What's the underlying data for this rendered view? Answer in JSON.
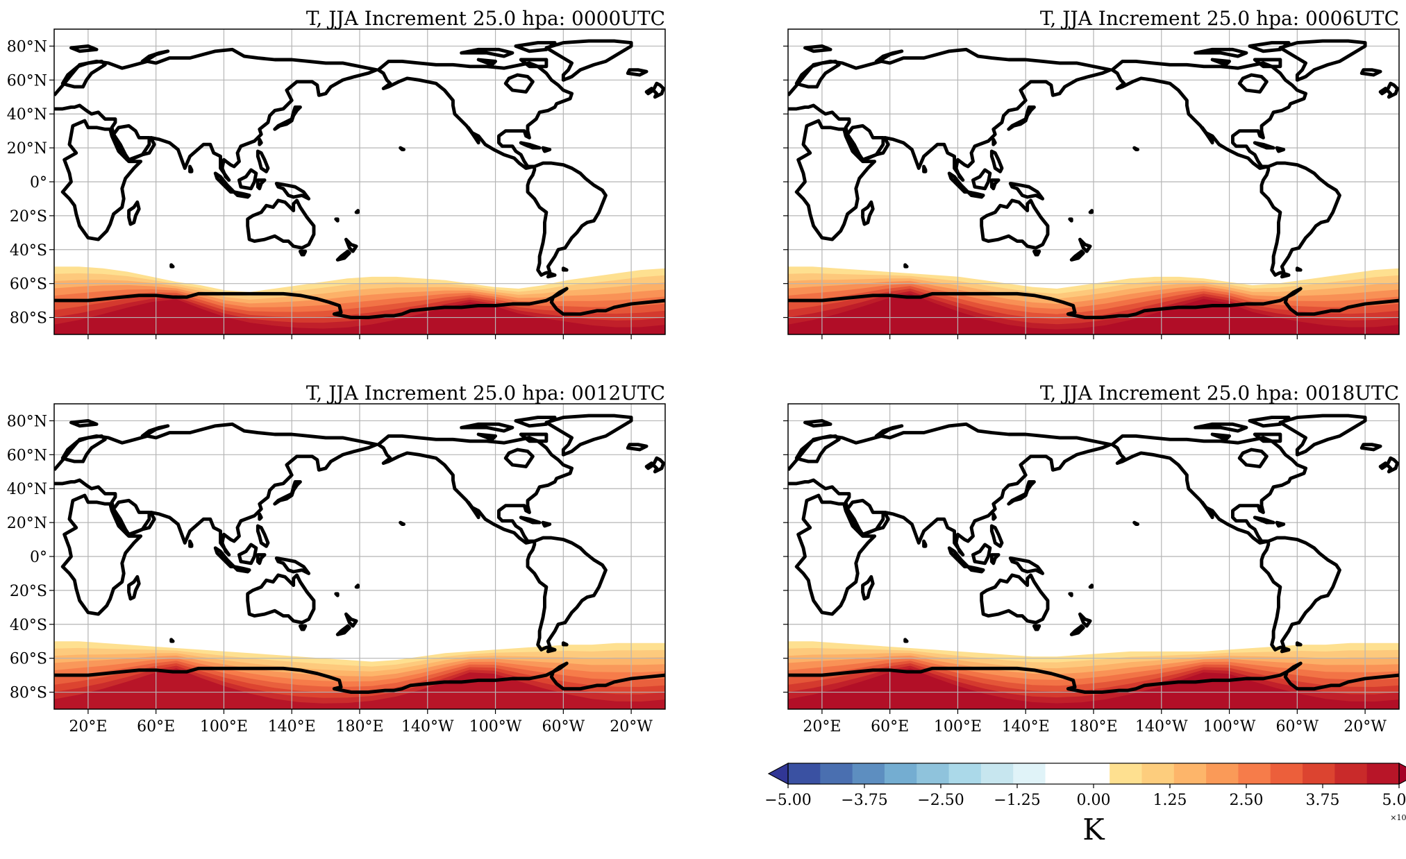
{
  "panels": [
    {
      "title": "T, JJA Increment 25.0 hpa: 0000UTC",
      "show_xticks": false,
      "show_yticks": true,
      "field": {
        "edge_offset_deg": [
          -6,
          -6,
          -5,
          -3,
          0,
          3,
          5,
          8,
          9,
          7,
          5,
          3,
          1,
          0,
          0,
          1,
          2,
          4,
          6,
          7,
          5,
          2,
          0,
          -2,
          -4,
          -5
        ],
        "peak_k": 0.46
      }
    },
    {
      "title": "T, JJA Increment 25.0 hpa: 0006UTC",
      "show_xticks": false,
      "show_yticks": false,
      "field": {
        "edge_offset_deg": [
          -6,
          -6,
          -5,
          -4,
          -3,
          -2,
          -1,
          0,
          2,
          4,
          6,
          7,
          5,
          3,
          1,
          0,
          0,
          1,
          3,
          5,
          4,
          2,
          0,
          -2,
          -4,
          -5
        ],
        "peak_k": 0.47
      }
    },
    {
      "title": "T, JJA Increment 25.0 hpa: 0012UTC",
      "show_xticks": true,
      "show_yticks": true,
      "field": {
        "edge_offset_deg": [
          -6,
          -6,
          -5,
          -4,
          -3,
          -2,
          -1,
          0,
          1,
          2,
          3,
          4,
          5,
          6,
          5,
          3,
          1,
          0,
          -1,
          -2,
          -3,
          -4,
          -4,
          -5,
          -5,
          -5
        ],
        "peak_k": 0.43
      }
    },
    {
      "title": "T, JJA Increment 25.0 hpa: 0018UTC",
      "show_xticks": true,
      "show_yticks": false,
      "field": {
        "edge_offset_deg": [
          -6,
          -6,
          -5,
          -4,
          -3,
          -2,
          -1,
          0,
          1,
          2,
          3,
          3,
          2,
          1,
          0,
          0,
          0,
          0,
          -1,
          -2,
          -3,
          -4,
          -4,
          -5,
          -5,
          -5
        ],
        "peak_k": 0.46
      }
    }
  ],
  "map": {
    "projection": "PlateCarree centered 180",
    "lon_range": [
      0,
      360
    ],
    "lat_range": [
      -90,
      90
    ],
    "lon_ticks": [
      20,
      60,
      100,
      140,
      180,
      220,
      260,
      300,
      340
    ],
    "lon_tick_labels": [
      "20°E",
      "60°E",
      "100°E",
      "140°E",
      "180°E",
      "140°W",
      "100°W",
      "60°W",
      "20°W"
    ],
    "lat_ticks": [
      80,
      60,
      40,
      20,
      0,
      -20,
      -40,
      -60,
      -80
    ],
    "lat_tick_labels": [
      "80°N",
      "60°N",
      "40°N",
      "20°N",
      "0°",
      "20°S",
      "40°S",
      "60°S",
      "80°S"
    ],
    "grid": true,
    "field_base_lat": -56
  },
  "colorbar": {
    "label": "K",
    "multiplier": "×10⁻¹",
    "tick_values": [
      -5.0,
      -3.75,
      -2.5,
      -1.25,
      0.0,
      1.25,
      2.5,
      3.75,
      5.0
    ],
    "tick_labels": [
      "−5.00",
      "−3.75",
      "−2.50",
      "−1.25",
      "0.00",
      "1.25",
      "2.50",
      "3.75",
      "5.00"
    ],
    "range": [
      -5,
      5
    ],
    "extend": "both",
    "colors": [
      "#313695",
      "#3a51a2",
      "#4a6fb0",
      "#5d8ec0",
      "#74add1",
      "#8fc3dc",
      "#abd9e9",
      "#c7e6ef",
      "#e0f3f8",
      "#ffffff",
      "#ffffff",
      "#fee090",
      "#fdcd7d",
      "#fdb56a",
      "#fa9a58",
      "#f67c4a",
      "#ec5f3b",
      "#dc4430",
      "#c92a2a",
      "#b81528",
      "#a50026"
    ]
  }
}
